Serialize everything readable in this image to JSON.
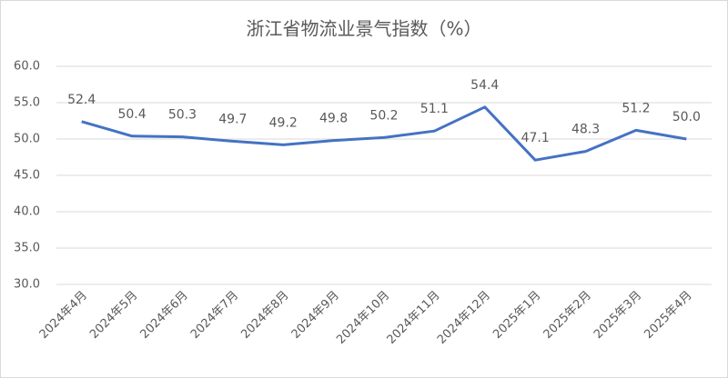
{
  "chart_data": {
    "type": "line",
    "title": "浙江省物流业景气指数（%）",
    "categories": [
      "2024年4月",
      "2024年5月",
      "2024年6月",
      "2024年7月",
      "2024年8月",
      "2024年9月",
      "2024年10月",
      "2024年11月",
      "2024年12月",
      "2025年1月",
      "2025年2月",
      "2025年3月",
      "2025年4月"
    ],
    "values": [
      52.4,
      50.4,
      50.3,
      49.7,
      49.2,
      49.8,
      50.2,
      51.1,
      54.4,
      47.1,
      48.3,
      51.2,
      50.0
    ],
    "value_labels": [
      "52.4",
      "50.4",
      "50.3",
      "49.7",
      "49.2",
      "49.8",
      "50.2",
      "51.1",
      "54.4",
      "47.1",
      "48.3",
      "51.2",
      "50.0"
    ],
    "color": "#4472c4",
    "ylim": [
      30,
      60
    ],
    "yticks": [
      {
        "value": 30,
        "label": "30.0"
      },
      {
        "value": 35,
        "label": "35.0"
      },
      {
        "value": 40,
        "label": "40.0"
      },
      {
        "value": 45,
        "label": "45.0"
      },
      {
        "value": 50,
        "label": "50.0"
      },
      {
        "value": 55,
        "label": "55.0"
      },
      {
        "value": 60,
        "label": "60.0"
      }
    ],
    "grid": true
  }
}
